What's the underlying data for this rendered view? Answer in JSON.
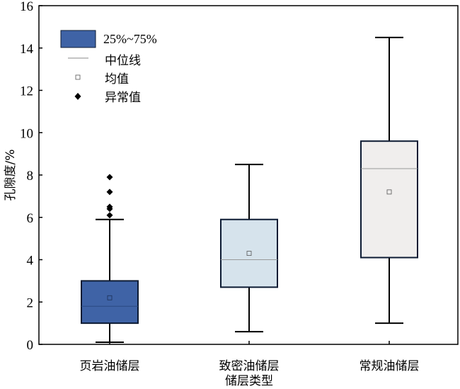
{
  "chart_data": {
    "type": "box",
    "title": "",
    "xlabel": "储层类型",
    "ylabel": "孔隙度/%",
    "ylim": [
      0,
      16
    ],
    "yticks": [
      0,
      2,
      4,
      6,
      8,
      10,
      12,
      14,
      16
    ],
    "grid": false,
    "legend_position": "top-left",
    "legend": {
      "box": "25%~75%",
      "median": "中位线",
      "mean": "均值",
      "outlier": "异常值"
    },
    "categories": [
      "页岩油储层",
      "致密油储层",
      "常规油储层"
    ],
    "boxes": [
      {
        "name": "页岩油储层",
        "min": 0.1,
        "q1": 1.0,
        "median": 1.8,
        "mean": 2.2,
        "q3": 3.0,
        "max": 5.9,
        "outliers": [
          6.1,
          6.4,
          6.5,
          7.2,
          7.9
        ],
        "color": "#3f63a6"
      },
      {
        "name": "致密油储层",
        "min": 0.6,
        "q1": 2.7,
        "median": 4.0,
        "mean": 4.3,
        "q3": 5.9,
        "max": 8.5,
        "outliers": [],
        "color": "#d6e3ec"
      },
      {
        "name": "常规油储层",
        "min": 1.0,
        "q1": 4.1,
        "median": 8.3,
        "mean": 7.2,
        "q3": 9.6,
        "max": 14.5,
        "outliers": [],
        "color": "#f0eeed"
      }
    ]
  }
}
